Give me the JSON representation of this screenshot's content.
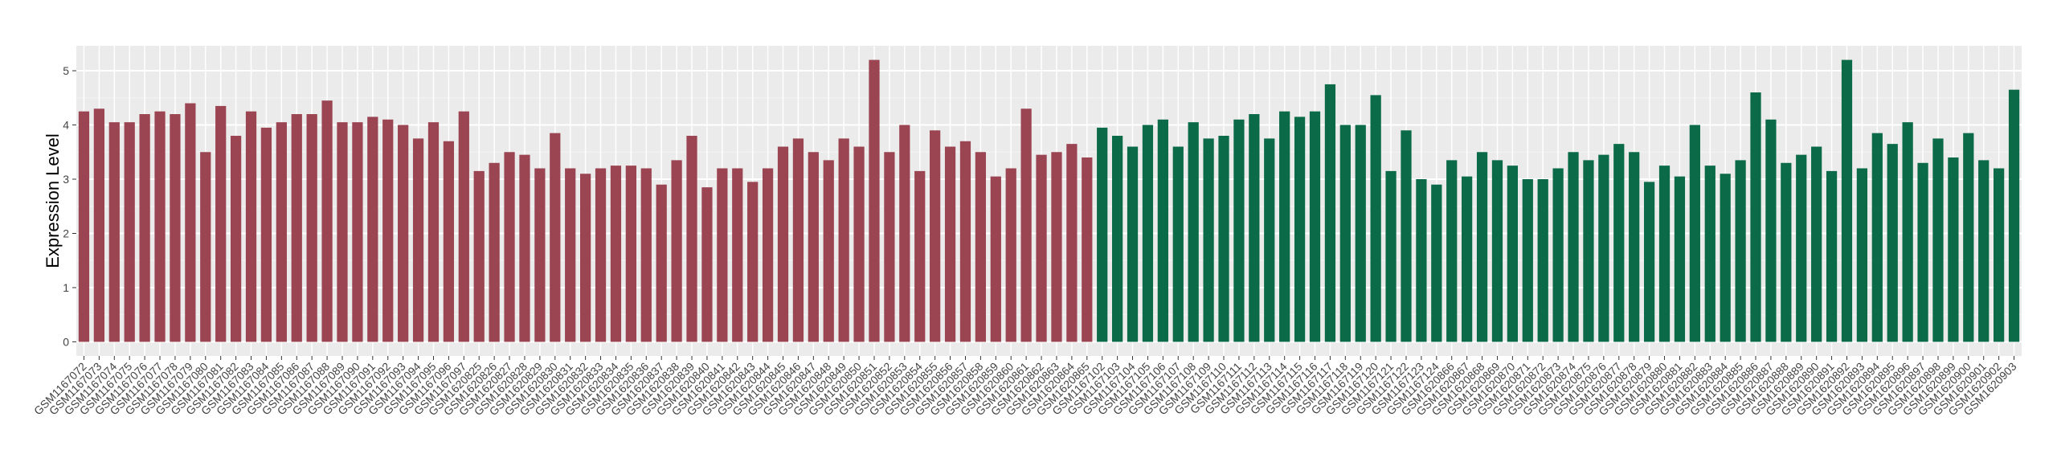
{
  "chart_data": {
    "type": "bar",
    "y_label": "Expression Level",
    "categories": [
      "GSM1167072",
      "GSM1167073",
      "GSM1167074",
      "GSM1167075",
      "GSM1167076",
      "GSM1167077",
      "GSM1167078",
      "GSM1167079",
      "GSM1167080",
      "GSM1167081",
      "GSM1167082",
      "GSM1167083",
      "GSM1167084",
      "GSM1167085",
      "GSM1167086",
      "GSM1167087",
      "GSM1167088",
      "GSM1167089",
      "GSM1167090",
      "GSM1167091",
      "GSM1167092",
      "GSM1167093",
      "GSM1167094",
      "GSM1167095",
      "GSM1167096",
      "GSM1167097",
      "GSM1620825",
      "GSM1620826",
      "GSM1620827",
      "GSM1620828",
      "GSM1620829",
      "GSM1620830",
      "GSM1620831",
      "GSM1620832",
      "GSM1620833",
      "GSM1620834",
      "GSM1620835",
      "GSM1620836",
      "GSM1620837",
      "GSM1620838",
      "GSM1620839",
      "GSM1620840",
      "GSM1620841",
      "GSM1620842",
      "GSM1620843",
      "GSM1620844",
      "GSM1620845",
      "GSM1620846",
      "GSM1620847",
      "GSM1620848",
      "GSM1620849",
      "GSM1620850",
      "GSM1620851",
      "GSM1620852",
      "GSM1620853",
      "GSM1620854",
      "GSM1620855",
      "GSM1620856",
      "GSM1620857",
      "GSM1620858",
      "GSM1620859",
      "GSM1620860",
      "GSM1620861",
      "GSM1620862",
      "GSM1620863",
      "GSM1620864",
      "GSM1620865",
      "GSM1167102",
      "GSM1167103",
      "GSM1167104",
      "GSM1167105",
      "GSM1167106",
      "GSM1167107",
      "GSM1167108",
      "GSM1167109",
      "GSM1167110",
      "GSM1167111",
      "GSM1167112",
      "GSM1167113",
      "GSM1167114",
      "GSM1167115",
      "GSM1167116",
      "GSM1167117",
      "GSM1167118",
      "GSM1167119",
      "GSM1167120",
      "GSM1167121",
      "GSM1167122",
      "GSM1167123",
      "GSM1167124",
      "GSM1620866",
      "GSM1620867",
      "GSM1620868",
      "GSM1620869",
      "GSM1620870",
      "GSM1620871",
      "GSM1620872",
      "GSM1620873",
      "GSM1620874",
      "GSM1620875",
      "GSM1620876",
      "GSM1620877",
      "GSM1620878",
      "GSM1620879",
      "GSM1620880",
      "GSM1620881",
      "GSM1620882",
      "GSM1620883",
      "GSM1620884",
      "GSM1620885",
      "GSM1620886",
      "GSM1620887",
      "GSM1620888",
      "GSM1620889",
      "GSM1620890",
      "GSM1620891",
      "GSM1620892",
      "GSM1620893",
      "GSM1620894",
      "GSM1620895",
      "GSM1620896",
      "GSM1620897",
      "GSM1620898",
      "GSM1620899",
      "GSM1620900",
      "GSM1620901",
      "GSM1620902",
      "GSM1620903"
    ],
    "values": [
      4.25,
      4.3,
      4.05,
      4.05,
      4.2,
      4.25,
      4.2,
      4.4,
      3.5,
      4.35,
      3.8,
      4.25,
      3.95,
      4.05,
      4.2,
      4.2,
      4.45,
      4.05,
      4.05,
      4.15,
      4.1,
      4.0,
      3.75,
      4.05,
      3.7,
      4.25,
      3.15,
      3.3,
      3.5,
      3.45,
      3.2,
      3.85,
      3.2,
      3.1,
      3.2,
      3.25,
      3.25,
      3.2,
      2.9,
      3.35,
      3.8,
      2.85,
      3.2,
      3.2,
      2.95,
      3.2,
      3.6,
      3.75,
      3.5,
      3.35,
      3.75,
      3.6,
      5.2,
      3.5,
      4.0,
      3.15,
      3.9,
      3.6,
      3.7,
      3.5,
      3.05,
      3.2,
      4.3,
      3.45,
      3.5,
      3.65,
      3.4,
      3.95,
      3.8,
      3.6,
      4.0,
      4.1,
      3.6,
      4.05,
      3.75,
      3.8,
      4.1,
      4.2,
      3.75,
      4.25,
      4.15,
      4.25,
      4.75,
      4.0,
      4.0,
      4.55,
      3.15,
      3.9,
      3.0,
      2.9,
      3.35,
      3.05,
      3.5,
      3.35,
      3.25,
      3.0,
      3.0,
      3.2,
      3.5,
      3.35,
      3.45,
      3.65,
      3.5,
      2.95,
      3.25,
      3.05,
      4.0,
      3.25,
      3.1,
      3.35,
      4.6,
      4.1,
      3.3,
      3.45,
      3.6,
      3.15,
      5.2,
      3.2,
      3.85,
      3.65,
      4.05,
      3.3,
      3.75,
      3.4,
      3.85,
      3.35,
      3.2,
      4.65
    ],
    "colors": [
      "#9b4452",
      "#9b4452",
      "#9b4452",
      "#9b4452",
      "#9b4452",
      "#9b4452",
      "#9b4452",
      "#9b4452",
      "#9b4452",
      "#9b4452",
      "#9b4452",
      "#9b4452",
      "#9b4452",
      "#9b4452",
      "#9b4452",
      "#9b4452",
      "#9b4452",
      "#9b4452",
      "#9b4452",
      "#9b4452",
      "#9b4452",
      "#9b4452",
      "#9b4452",
      "#9b4452",
      "#9b4452",
      "#9b4452",
      "#9b4452",
      "#9b4452",
      "#9b4452",
      "#9b4452",
      "#9b4452",
      "#9b4452",
      "#9b4452",
      "#9b4452",
      "#9b4452",
      "#9b4452",
      "#9b4452",
      "#9b4452",
      "#9b4452",
      "#9b4452",
      "#9b4452",
      "#9b4452",
      "#9b4452",
      "#9b4452",
      "#9b4452",
      "#9b4452",
      "#9b4452",
      "#9b4452",
      "#9b4452",
      "#9b4452",
      "#9b4452",
      "#9b4452",
      "#9b4452",
      "#9b4452",
      "#9b4452",
      "#9b4452",
      "#9b4452",
      "#9b4452",
      "#9b4452",
      "#9b4452",
      "#9b4452",
      "#9b4452",
      "#9b4452",
      "#9b4452",
      "#9b4452",
      "#9b4452",
      "#9b4452",
      "#0b6a48",
      "#0b6a48",
      "#0b6a48",
      "#0b6a48",
      "#0b6a48",
      "#0b6a48",
      "#0b6a48",
      "#0b6a48",
      "#0b6a48",
      "#0b6a48",
      "#0b6a48",
      "#0b6a48",
      "#0b6a48",
      "#0b6a48",
      "#0b6a48",
      "#0b6a48",
      "#0b6a48",
      "#0b6a48",
      "#0b6a48",
      "#0b6a48",
      "#0b6a48",
      "#0b6a48",
      "#0b6a48",
      "#0b6a48",
      "#0b6a48",
      "#0b6a48",
      "#0b6a48",
      "#0b6a48",
      "#0b6a48",
      "#0b6a48",
      "#0b6a48",
      "#0b6a48",
      "#0b6a48",
      "#0b6a48",
      "#0b6a48",
      "#0b6a48",
      "#0b6a48",
      "#0b6a48",
      "#0b6a48",
      "#0b6a48",
      "#0b6a48",
      "#0b6a48",
      "#0b6a48",
      "#0b6a48",
      "#0b6a48",
      "#0b6a48",
      "#0b6a48",
      "#0b6a48",
      "#0b6a48",
      "#0b6a48",
      "#0b6a48",
      "#0b6a48",
      "#0b6a48",
      "#0b6a48",
      "#0b6a48",
      "#0b6a48",
      "#0b6a48",
      "#0b6a48",
      "#0b6a48",
      "#0b6a48",
      "#0b6a48"
    ],
    "ylim": [
      -0.26,
      5.46
    ],
    "yticks": [
      0,
      1,
      2,
      3,
      4,
      5
    ],
    "grid": true
  }
}
